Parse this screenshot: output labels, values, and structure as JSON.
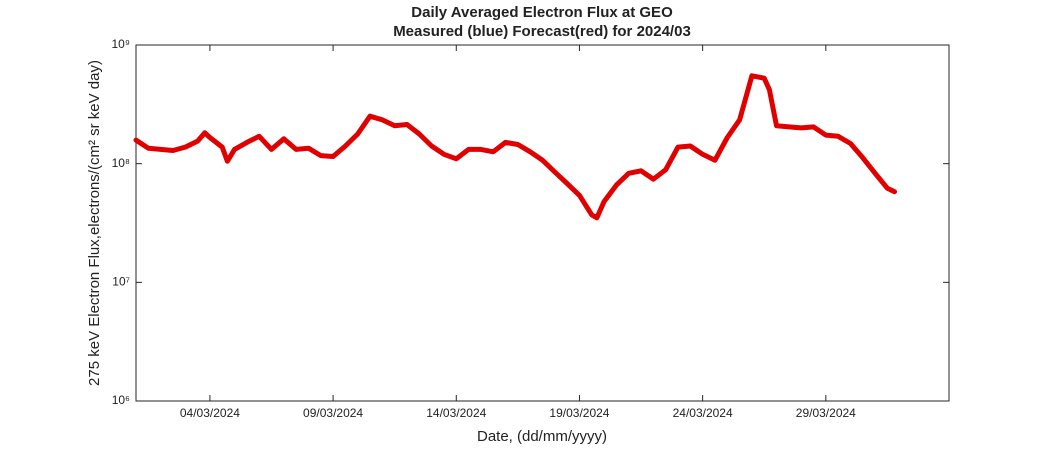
{
  "chart_data": {
    "type": "line",
    "title": "Daily Averaged Electron Flux at GEO",
    "subtitle": "Measured (blue) Forecast(red) for 2024/03",
    "x_label": "Date, (dd/mm/yyyy)",
    "y_label": "275 keV Electron Flux,electrons/(cm² sr keV day)",
    "log_y": true,
    "color": "#e00000",
    "xlim": [
      "2024-03-01T00:00",
      "2024-04-03T00:00"
    ],
    "xticks": [
      {
        "value": "2024-03-04T00:00",
        "label": "04/03/2024"
      },
      {
        "value": "2024-03-09T00:00",
        "label": "09/03/2024"
      },
      {
        "value": "2024-03-14T00:00",
        "label": "14/03/2024"
      },
      {
        "value": "2024-03-19T00:00",
        "label": "19/03/2024"
      },
      {
        "value": "2024-03-24T00:00",
        "label": "24/03/2024"
      },
      {
        "value": "2024-03-29T00:00",
        "label": "29/03/2024"
      }
    ],
    "ylim": [
      1000000,
      1000000000
    ],
    "yticks": [
      {
        "value": 1000000,
        "label": "10⁶"
      },
      {
        "value": 10000000,
        "label": "10⁷"
      },
      {
        "value": 100000000,
        "label": "10⁸"
      },
      {
        "value": 1000000000,
        "label": "10⁹"
      }
    ],
    "x": [
      "2024-03-01T00:00",
      "2024-03-01T12:00",
      "2024-03-02T00:00",
      "2024-03-02T12:00",
      "2024-03-03T00:00",
      "2024-03-03T12:00",
      "2024-03-03T19:00",
      "2024-03-04T00:00",
      "2024-03-04T12:00",
      "2024-03-04T17:00",
      "2024-03-05T00:00",
      "2024-03-05T12:00",
      "2024-03-06T00:00",
      "2024-03-06T12:00",
      "2024-03-07T00:00",
      "2024-03-07T12:00",
      "2024-03-08T00:00",
      "2024-03-08T12:00",
      "2024-03-09T00:00",
      "2024-03-09T12:00",
      "2024-03-10T00:00",
      "2024-03-10T12:00",
      "2024-03-11T00:00",
      "2024-03-11T12:00",
      "2024-03-12T00:00",
      "2024-03-12T12:00",
      "2024-03-13T00:00",
      "2024-03-13T12:00",
      "2024-03-14T00:00",
      "2024-03-14T12:00",
      "2024-03-15T00:00",
      "2024-03-15T12:00",
      "2024-03-16T00:00",
      "2024-03-16T12:00",
      "2024-03-17T00:00",
      "2024-03-17T12:00",
      "2024-03-18T00:00",
      "2024-03-18T12:00",
      "2024-03-19T00:00",
      "2024-03-19T12:00",
      "2024-03-19T17:00",
      "2024-03-20T00:00",
      "2024-03-20T12:00",
      "2024-03-21T00:00",
      "2024-03-21T12:00",
      "2024-03-22T00:00",
      "2024-03-22T12:00",
      "2024-03-23T00:00",
      "2024-03-23T12:00",
      "2024-03-24T00:00",
      "2024-03-24T12:00",
      "2024-03-25T00:00",
      "2024-03-25T12:00",
      "2024-03-26T00:00",
      "2024-03-26T12:00",
      "2024-03-26T17:00",
      "2024-03-27T00:00",
      "2024-03-27T12:00",
      "2024-03-28T00:00",
      "2024-03-28T12:00",
      "2024-03-29T00:00",
      "2024-03-29T12:00",
      "2024-03-30T00:00",
      "2024-03-30T12:00",
      "2024-03-31T00:00",
      "2024-03-31T12:00",
      "2024-03-31T19:00"
    ],
    "values": [
      158000000.0,
      135000000.0,
      132000000.0,
      129000000.0,
      138000000.0,
      155000000.0,
      182000000.0,
      166000000.0,
      138000000.0,
      105000000.0,
      132000000.0,
      151000000.0,
      170000000.0,
      132000000.0,
      162000000.0,
      132000000.0,
      135000000.0,
      117000000.0,
      115000000.0,
      141000000.0,
      178000000.0,
      251000000.0,
      234000000.0,
      209000000.0,
      214000000.0,
      178000000.0,
      141000000.0,
      120000000.0,
      110000000.0,
      132000000.0,
      132000000.0,
      126000000.0,
      151000000.0,
      145000000.0,
      126000000.0,
      107000000.0,
      85000000.0,
      68000000.0,
      54000000.0,
      37000000.0,
      35000000.0,
      48000000.0,
      66000000.0,
      83000000.0,
      87000000.0,
      74000000.0,
      89000000.0,
      138000000.0,
      141000000.0,
      120000000.0,
      107000000.0,
      166000000.0,
      234000000.0,
      550000000.0,
      525000000.0,
      420000000.0,
      209000000.0,
      204000000.0,
      200000000.0,
      204000000.0,
      174000000.0,
      170000000.0,
      148000000.0,
      112000000.0,
      83000000.0,
      62000000.0,
      58000000.0
    ]
  }
}
